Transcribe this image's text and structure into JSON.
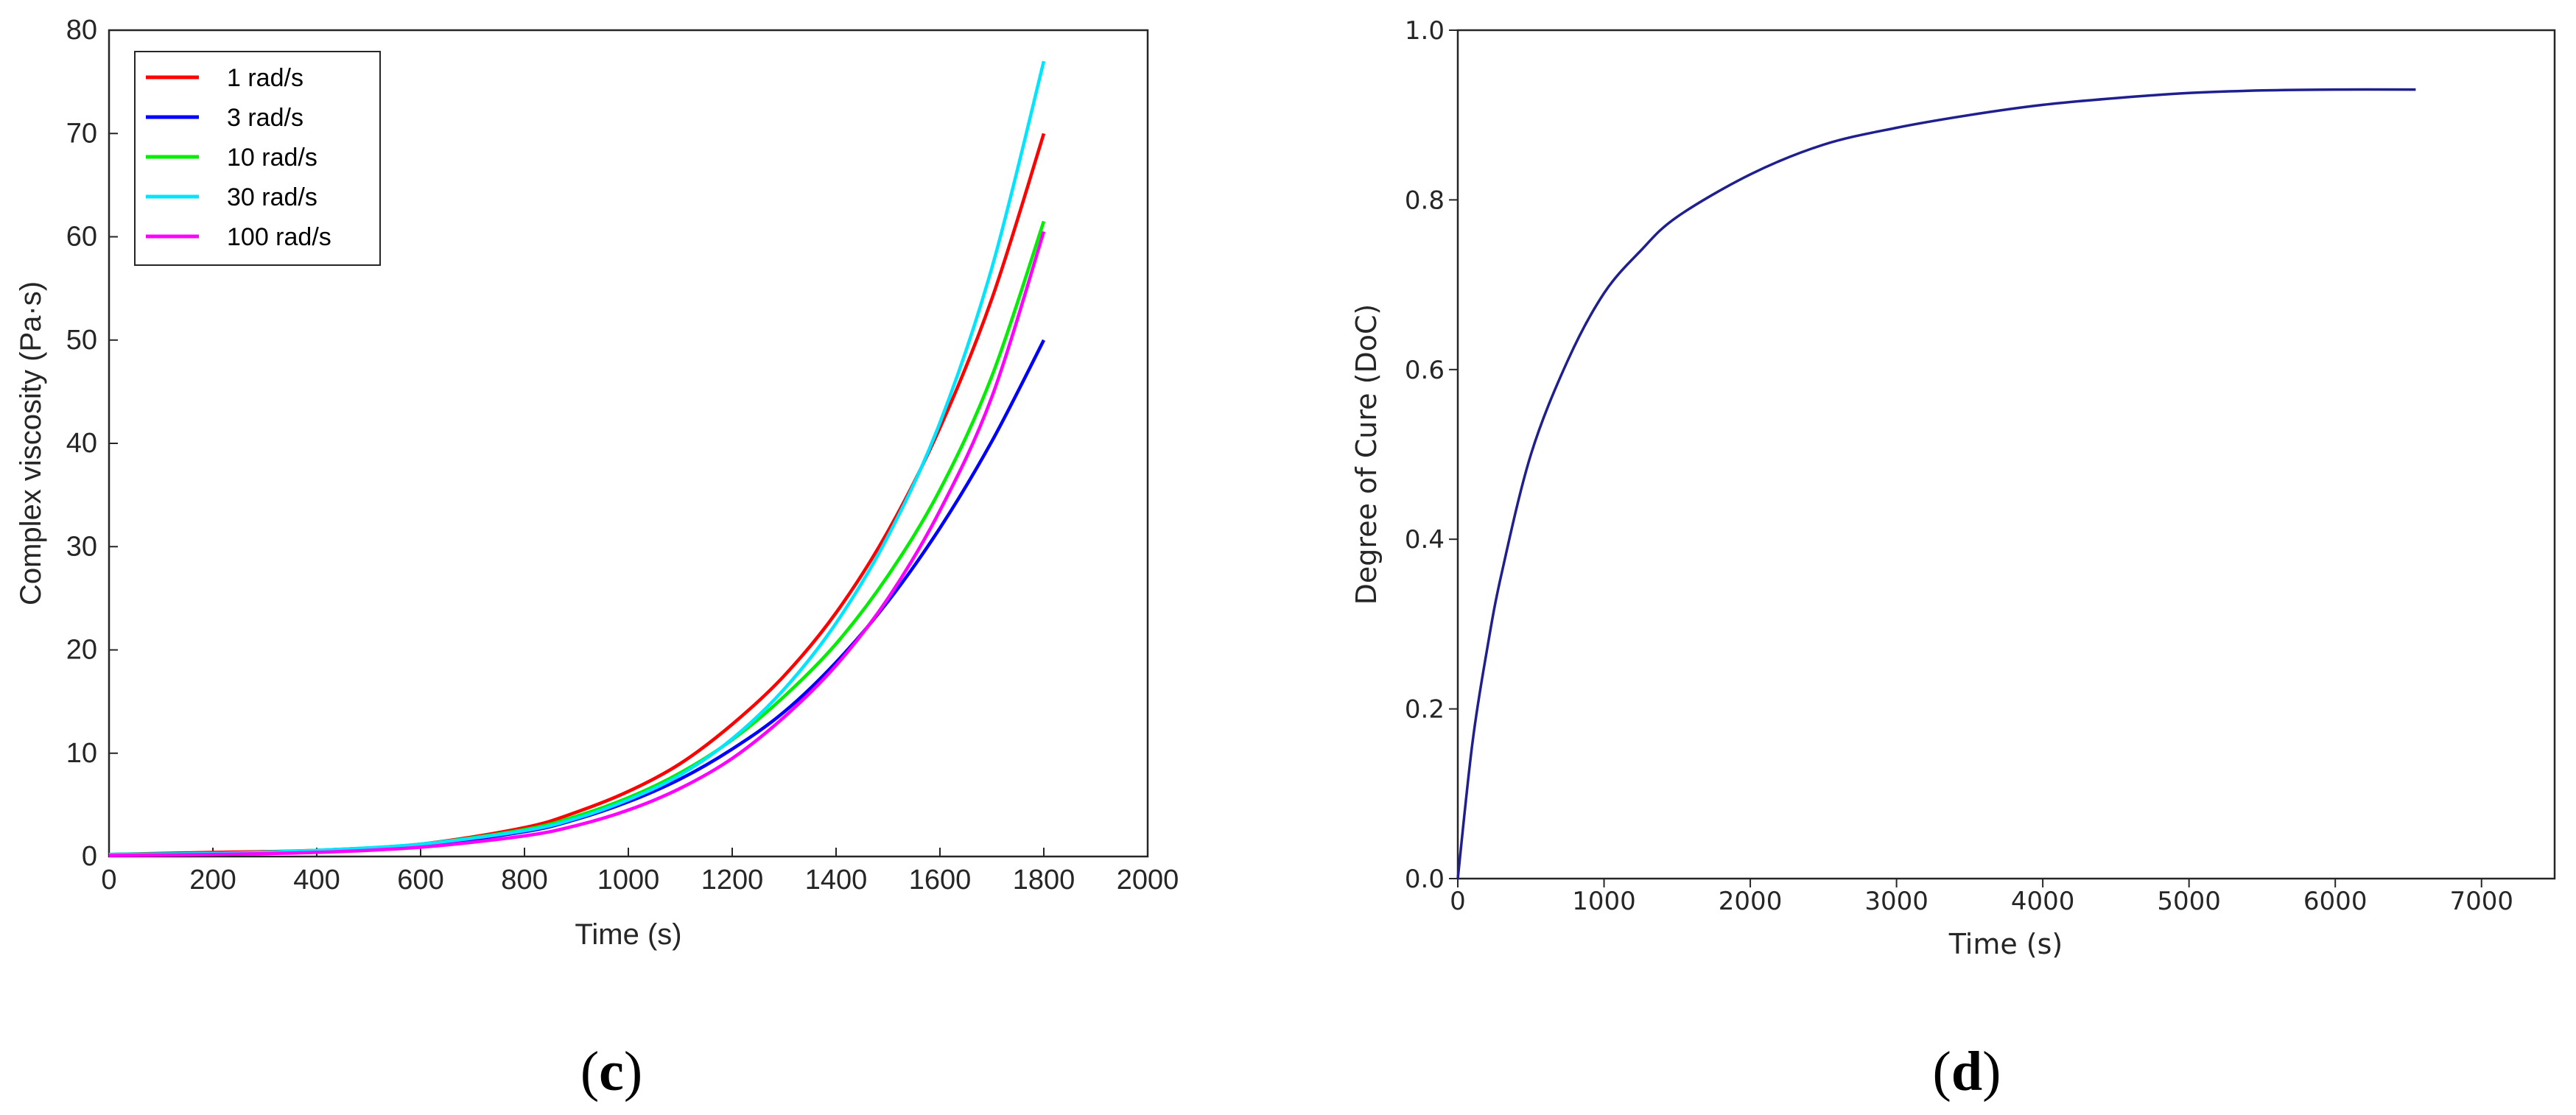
{
  "panels": {
    "c": {
      "open": "(",
      "letter": "c",
      "close": ")"
    },
    "d": {
      "open": "(",
      "letter": "d",
      "close": ")"
    }
  },
  "chart_data": [
    {
      "type": "line",
      "panel": "c",
      "title": "",
      "xlabel": "Time (s)",
      "ylabel": "Complex viscosity (Pa·s)",
      "xlim": [
        0,
        2000
      ],
      "ylim": [
        0,
        80
      ],
      "xticks": [
        0,
        200,
        400,
        600,
        800,
        1000,
        1200,
        1400,
        1600,
        1800,
        2000
      ],
      "yticks": [
        0,
        10,
        20,
        30,
        40,
        50,
        60,
        70,
        80
      ],
      "grid": false,
      "legend_position": "top-left",
      "x": [
        0,
        200,
        400,
        600,
        800,
        900,
        1000,
        1100,
        1200,
        1300,
        1400,
        1500,
        1600,
        1700,
        1800
      ],
      "series": [
        {
          "name": "1 rad/s",
          "color": "#ff0000",
          "values": [
            0.2,
            0.4,
            0.6,
            1.2,
            2.8,
            4.3,
            6.3,
            9.0,
            12.8,
            17.5,
            23.6,
            31.5,
            41.5,
            54.0,
            70.0
          ]
        },
        {
          "name": "3 rad/s",
          "color": "#0000ff",
          "values": [
            0.2,
            0.3,
            0.5,
            1.1,
            2.4,
            3.6,
            5.3,
            7.5,
            10.4,
            14.0,
            18.8,
            24.7,
            31.8,
            40.2,
            50.0
          ]
        },
        {
          "name": "10 rad/s",
          "color": "#00ee00",
          "values": [
            0.2,
            0.3,
            0.6,
            1.2,
            2.6,
            3.9,
            5.7,
            8.1,
            11.3,
            15.5,
            20.6,
            27.2,
            35.5,
            46.5,
            61.5
          ]
        },
        {
          "name": "30 rad/s",
          "color": "#00e5ff",
          "values": [
            0.2,
            0.3,
            0.6,
            1.2,
            2.5,
            3.7,
            5.5,
            7.9,
            11.4,
            16.2,
            22.6,
            31.0,
            42.0,
            57.0,
            77.0
          ]
        },
        {
          "name": "100 rad/s",
          "color": "#ff00ff",
          "values": [
            0.1,
            0.2,
            0.4,
            0.9,
            2.0,
            3.0,
            4.5,
            6.6,
            9.5,
            13.5,
            18.5,
            25.0,
            33.5,
            44.5,
            60.5
          ]
        }
      ]
    },
    {
      "type": "line",
      "panel": "d",
      "title": "",
      "xlabel": "Time (s)",
      "ylabel": "Degree of Cure (DoC)",
      "xlim": [
        0,
        7500
      ],
      "ylim": [
        0,
        1.0
      ],
      "xticks": [
        0,
        1000,
        2000,
        3000,
        4000,
        5000,
        6000,
        7000
      ],
      "yticks": [
        0.0,
        0.2,
        0.4,
        0.6,
        0.8,
        1.0
      ],
      "ytick_labels": [
        "0.0",
        "0.2",
        "0.4",
        "0.6",
        "0.8",
        "1.0"
      ],
      "grid": false,
      "x": [
        0,
        100,
        200,
        300,
        500,
        750,
        1000,
        1250,
        1500,
        2000,
        2500,
        3000,
        3500,
        4000,
        4500,
        5000,
        5500,
        6000,
        6550
      ],
      "series": [
        {
          "color": "#1f1f8f",
          "values": [
            0.0,
            0.16,
            0.27,
            0.36,
            0.5,
            0.61,
            0.69,
            0.74,
            0.78,
            0.83,
            0.865,
            0.885,
            0.9,
            0.912,
            0.92,
            0.926,
            0.929,
            0.93,
            0.93
          ]
        }
      ]
    }
  ]
}
